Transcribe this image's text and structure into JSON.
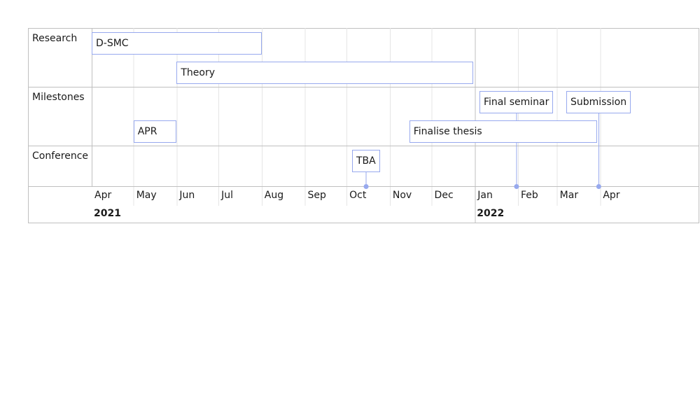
{
  "groups": [
    {
      "label": "Research"
    },
    {
      "label": "Milestones"
    },
    {
      "label": "Conference"
    }
  ],
  "items": [
    {
      "label": "D-SMC",
      "start": "2021-04-01",
      "end": "2021-08-01",
      "group": 0,
      "row": 0,
      "type": "range"
    },
    {
      "label": "Theory",
      "start": "2021-06-01",
      "end": "2021-12-31",
      "group": 0,
      "row": 1,
      "type": "range"
    },
    {
      "label": "Final seminar",
      "date": "2022-01-31",
      "group": 1,
      "row": 0,
      "type": "point"
    },
    {
      "label": "Submission",
      "date": "2022-03-31",
      "group": 1,
      "row": 0,
      "type": "point"
    },
    {
      "label": "APR",
      "start": "2021-05-01",
      "end": "2021-06-01",
      "group": 1,
      "row": 1,
      "type": "range"
    },
    {
      "label": "Finalise thesis",
      "start": "2021-11-15",
      "end": "2022-03-30",
      "group": 1,
      "row": 1,
      "type": "range"
    },
    {
      "label": "TBA",
      "date": "2021-10-15",
      "group": 2,
      "row": 0,
      "type": "point"
    }
  ],
  "axis": {
    "months": [
      "Apr",
      "May",
      "Jun",
      "Jul",
      "Aug",
      "Sep",
      "Oct",
      "Nov",
      "Dec",
      "Jan",
      "Feb",
      "Mar",
      "Apr"
    ],
    "years": [
      "2021",
      "2022"
    ]
  },
  "colors": {
    "item_border": "#97a9ee",
    "marker": "#97a9ee",
    "grid": "#e5e5e5",
    "major_grid": "#bfbfbf",
    "frame": "#bfbfbf"
  }
}
